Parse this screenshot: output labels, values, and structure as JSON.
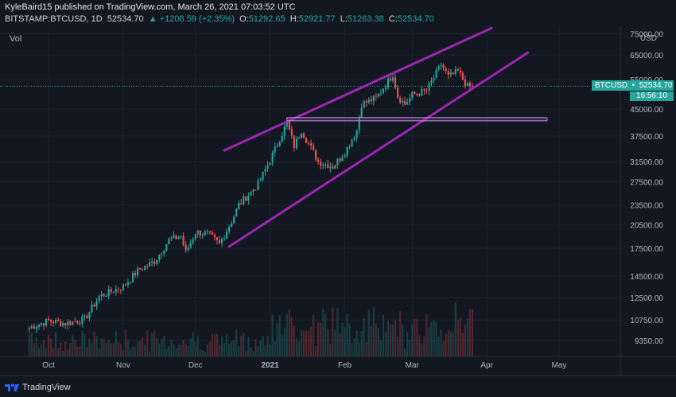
{
  "header": {
    "publish_line": "KyleBaird15 published on TradingView.com, March 26, 2021 07:03:52 UTC",
    "symbol": "BITSTAMP:BTCUSD, 1D",
    "last": "52534.70",
    "change": "▲ +1208.59 (+2.35%)",
    "o_label": "O:",
    "o_value": "51292.65",
    "h_label": "H:",
    "h_value": "52921.77",
    "l_label": "L:",
    "l_value": "51263.38",
    "c_label": "C:",
    "c_value": "52534.70"
  },
  "vol_label": "Vol",
  "price_tag": {
    "symbol": "BTCUSD",
    "price": "52534.70",
    "countdown": "16:56:10"
  },
  "footer": {
    "brand": "TradingView"
  },
  "colors": {
    "background": "#131722",
    "up": "#26a69a",
    "down": "#ef5350",
    "trendline": "#9c27b0",
    "axis_text": "#b2b5be"
  },
  "chart_data": {
    "type": "candlestick",
    "symbol": "BTCUSD",
    "timeframe": "1D",
    "y_axis": {
      "scale": "log",
      "currency": "USD",
      "ticks": [
        75000,
        65000,
        55000,
        45000,
        37500,
        31500,
        27500,
        23500,
        20500,
        17500,
        14500,
        12500,
        10750,
        9350
      ]
    },
    "x_axis": {
      "ticks": [
        "Oct",
        "Nov",
        "Dec",
        "2021",
        "Feb",
        "Mar",
        "Apr",
        "May"
      ]
    },
    "last_price": 52534.7,
    "price_path": [
      {
        "date": "2020-09-23",
        "close": 10200
      },
      {
        "date": "2020-10-01",
        "close": 10700
      },
      {
        "date": "2020-10-08",
        "close": 10500
      },
      {
        "date": "2020-10-16",
        "close": 10800
      },
      {
        "date": "2020-10-22",
        "close": 12600
      },
      {
        "date": "2020-11-01",
        "close": 13500
      },
      {
        "date": "2020-11-07",
        "close": 15000
      },
      {
        "date": "2020-11-14",
        "close": 16000
      },
      {
        "date": "2020-11-20",
        "close": 18500
      },
      {
        "date": "2020-11-25",
        "close": 19000
      },
      {
        "date": "2020-11-27",
        "close": 17000
      },
      {
        "date": "2020-12-01",
        "close": 19500
      },
      {
        "date": "2020-12-06",
        "close": 19300
      },
      {
        "date": "2020-12-11",
        "close": 18000
      },
      {
        "date": "2020-12-16",
        "close": 21000
      },
      {
        "date": "2020-12-19",
        "close": 23500
      },
      {
        "date": "2020-12-27",
        "close": 27000
      },
      {
        "date": "2021-01-02",
        "close": 33000
      },
      {
        "date": "2021-01-08",
        "close": 41000
      },
      {
        "date": "2021-01-11",
        "close": 35000
      },
      {
        "date": "2021-01-14",
        "close": 39000
      },
      {
        "date": "2021-01-21",
        "close": 31500
      },
      {
        "date": "2021-01-27",
        "close": 30500
      },
      {
        "date": "2021-02-01",
        "close": 33500
      },
      {
        "date": "2021-02-06",
        "close": 39000
      },
      {
        "date": "2021-02-08",
        "close": 46500
      },
      {
        "date": "2021-02-14",
        "close": 48500
      },
      {
        "date": "2021-02-21",
        "close": 57000
      },
      {
        "date": "2021-02-23",
        "close": 49000
      },
      {
        "date": "2021-02-26",
        "close": 46500
      },
      {
        "date": "2021-03-01",
        "close": 49500
      },
      {
        "date": "2021-03-07",
        "close": 51000
      },
      {
        "date": "2021-03-13",
        "close": 61000
      },
      {
        "date": "2021-03-16",
        "close": 56000
      },
      {
        "date": "2021-03-20",
        "close": 58000
      },
      {
        "date": "2021-03-24",
        "close": 52500
      },
      {
        "date": "2021-03-26",
        "close": 52534.7
      }
    ],
    "drawings": [
      {
        "kind": "trendline",
        "label": "",
        "from": {
          "date": "2020-12-13",
          "price": 34000
        },
        "to": {
          "date": "2021-04-03",
          "price": 78000
        }
      },
      {
        "kind": "trendline",
        "label": "",
        "from": {
          "date": "2020-12-15",
          "price": 17700
        },
        "to": {
          "date": "2021-04-18",
          "price": 66000
        }
      },
      {
        "kind": "horizontal_zone",
        "label": "",
        "from_date": "2021-01-08",
        "to_date": "2021-04-26",
        "price": 42000
      }
    ]
  }
}
